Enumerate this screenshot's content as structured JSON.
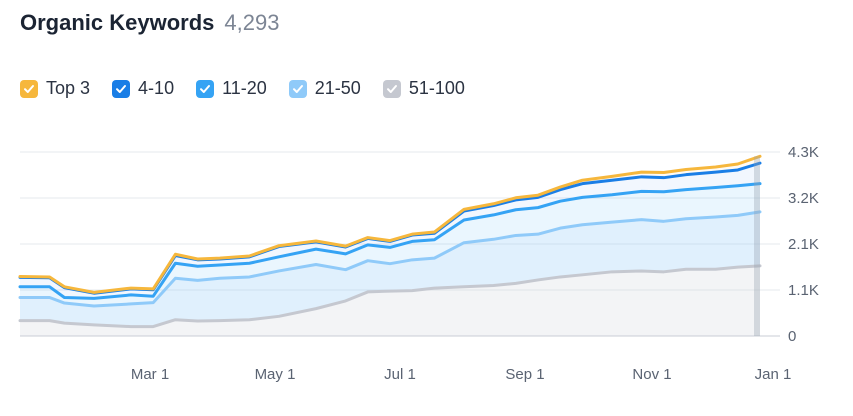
{
  "header": {
    "title": "Organic Keywords",
    "count": "4,293"
  },
  "legend": [
    {
      "label": "Top 3",
      "color": "#f6b73c",
      "checked": true
    },
    {
      "label": "4-10",
      "color": "#1a7ee6",
      "checked": true
    },
    {
      "label": "11-20",
      "color": "#35a3f4",
      "checked": true
    },
    {
      "label": "21-50",
      "color": "#8fcaf9",
      "checked": true
    },
    {
      "label": "51-100",
      "color": "#c5c8d0",
      "checked": true
    }
  ],
  "chart_data": {
    "type": "area",
    "x_ticks": [
      "Mar 1",
      "May 1",
      "Jul 1",
      "Sep 1",
      "Nov 1",
      "Jan 1"
    ],
    "y_ticks": [
      "4.3K",
      "3.2K",
      "2.1K",
      "1.1K",
      "0"
    ],
    "ylim": [
      0,
      4300
    ],
    "grid": true,
    "x": [
      0,
      0.04,
      0.06,
      0.1,
      0.15,
      0.18,
      0.21,
      0.24,
      0.27,
      0.31,
      0.35,
      0.4,
      0.44,
      0.47,
      0.5,
      0.53,
      0.56,
      0.6,
      0.64,
      0.67,
      0.7,
      0.73,
      0.76,
      0.8,
      0.84,
      0.87,
      0.9,
      0.94,
      0.97,
      1.0
    ],
    "series": [
      {
        "name": "51-100",
        "color": "#c5c8d0",
        "values": [
          360,
          360,
          300,
          260,
          220,
          220,
          380,
          350,
          360,
          380,
          460,
          640,
          820,
          1030,
          1050,
          1060,
          1120,
          1150,
          1180,
          1230,
          1310,
          1380,
          1430,
          1500,
          1520,
          1500,
          1560,
          1560,
          1610,
          1640
        ]
      },
      {
        "name": "21-50",
        "color": "#8fcaf9",
        "values": [
          900,
          900,
          770,
          700,
          750,
          780,
          1350,
          1300,
          1350,
          1380,
          1520,
          1670,
          1550,
          1760,
          1690,
          1780,
          1820,
          2180,
          2260,
          2350,
          2380,
          2520,
          2600,
          2660,
          2720,
          2680,
          2740,
          2780,
          2820,
          2900
        ]
      },
      {
        "name": "11-20",
        "color": "#35a3f4",
        "values": [
          1150,
          1150,
          900,
          880,
          960,
          930,
          1700,
          1630,
          1660,
          1700,
          1850,
          2030,
          1920,
          2130,
          2070,
          2210,
          2250,
          2710,
          2830,
          2950,
          3000,
          3150,
          3240,
          3300,
          3380,
          3370,
          3420,
          3470,
          3510,
          3560
        ]
      },
      {
        "name": "4-10",
        "color": "#1a7ee6",
        "values": [
          1370,
          1360,
          1130,
          1000,
          1100,
          1080,
          1880,
          1780,
          1800,
          1850,
          2090,
          2200,
          2080,
          2280,
          2210,
          2360,
          2400,
          2920,
          3050,
          3180,
          3240,
          3420,
          3560,
          3640,
          3720,
          3700,
          3770,
          3830,
          3880,
          4040
        ]
      },
      {
        "name": "Top 3",
        "color": "#f6b73c",
        "values": [
          1390,
          1380,
          1150,
          1020,
          1120,
          1100,
          1910,
          1800,
          1820,
          1870,
          2110,
          2220,
          2100,
          2300,
          2230,
          2380,
          2430,
          2960,
          3090,
          3230,
          3290,
          3480,
          3640,
          3730,
          3830,
          3820,
          3890,
          3950,
          4020,
          4200
        ]
      }
    ]
  }
}
